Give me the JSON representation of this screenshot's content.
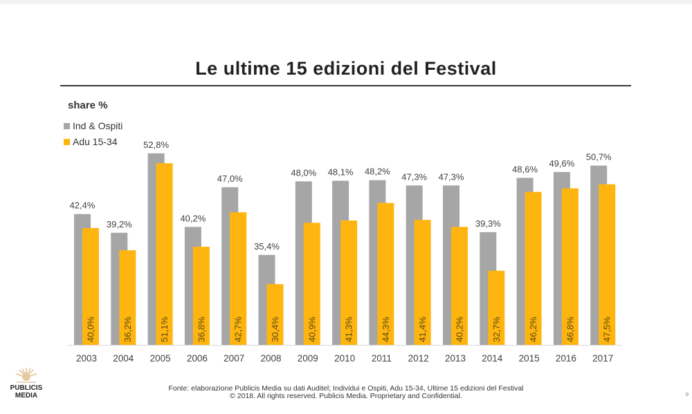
{
  "title": "Le ultime 15 edizioni del Festival",
  "footer": {
    "source": "Fonte: elaborazione Publicis Media su dati Auditel; Individui e Ospiti, Adu 15-34, Ultime 15 edizioni del Festival",
    "copyright": "© 2018. All rights reserved. Publicis Media. Proprietary and Confidential."
  },
  "logo": {
    "line1": "PUBLICIS",
    "line2": "MEDIA"
  },
  "page_number": "0",
  "chart_data": {
    "type": "bar",
    "title": "Le ultime 15 edizioni del Festival",
    "ylabel": "share %",
    "xlabel": "",
    "ylim": [
      20,
      55
    ],
    "grid": false,
    "legend_placement": "top-left",
    "categories": [
      "2003",
      "2004",
      "2005",
      "2006",
      "2007",
      "2008",
      "2009",
      "2010",
      "2011",
      "2012",
      "2013",
      "2014",
      "2015",
      "2016",
      "2017"
    ],
    "series": [
      {
        "name": "Ind & Ospiti",
        "color": "#a6a6a6",
        "values": [
          42.4,
          39.2,
          52.8,
          40.2,
          47.0,
          35.4,
          48.0,
          48.1,
          48.2,
          47.3,
          47.3,
          39.3,
          48.6,
          49.6,
          50.7
        ],
        "labels": [
          "42,4%",
          "39,2%",
          "52,8%",
          "40,2%",
          "47,0%",
          "35,4%",
          "48,0%",
          "48,1%",
          "48,2%",
          "47,3%",
          "47,3%",
          "39,3%",
          "48,6%",
          "49,6%",
          "50,7%"
        ]
      },
      {
        "name": "Adu 15-34",
        "color": "#ffb50f",
        "values": [
          40.0,
          36.2,
          51.1,
          36.8,
          42.7,
          30.4,
          40.9,
          41.3,
          44.3,
          41.4,
          40.2,
          32.7,
          46.2,
          46.8,
          47.5
        ],
        "labels": [
          "40,0%",
          "36,2%",
          "51,1%",
          "36,8%",
          "42,7%",
          "30,4%",
          "40,9%",
          "41,3%",
          "44,3%",
          "41,4%",
          "40,2%",
          "32,7%",
          "46,2%",
          "46,8%",
          "47,5%"
        ]
      }
    ]
  }
}
